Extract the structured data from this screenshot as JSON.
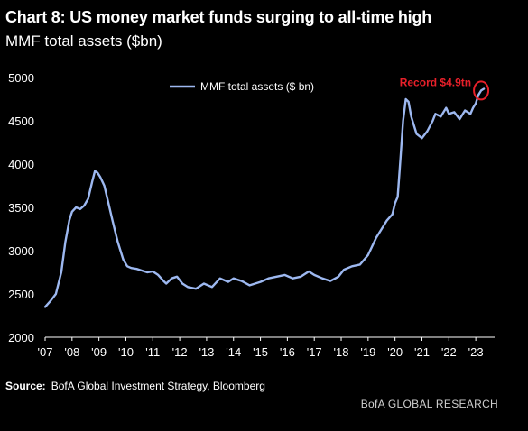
{
  "title": "Chart 8: US money market funds surging to all-time high",
  "subtitle": "MMF total assets ($bn)",
  "source_label": "Source:",
  "source_text": "BofA Global Investment Strategy, Bloomberg",
  "brand": "BofA GLOBAL RESEARCH",
  "colors": {
    "background": "#000000",
    "line": "#9db8f0",
    "annotation": "#e8202a",
    "axis": "#ffffff"
  },
  "chart_data": {
    "type": "line",
    "title": "Chart 8: US money market funds surging to all-time high",
    "ylabel": "MMF total assets ($bn)",
    "xlim": [
      2007,
      2023.7
    ],
    "ylim": [
      2000,
      5000
    ],
    "yticks": [
      2000,
      2500,
      3000,
      3500,
      4000,
      4500,
      5000
    ],
    "xticks": [
      {
        "value": 2007,
        "label": "'07"
      },
      {
        "value": 2008,
        "label": "'08"
      },
      {
        "value": 2009,
        "label": "'09"
      },
      {
        "value": 2010,
        "label": "'10"
      },
      {
        "value": 2011,
        "label": "'11"
      },
      {
        "value": 2012,
        "label": "'12"
      },
      {
        "value": 2013,
        "label": "'13"
      },
      {
        "value": 2014,
        "label": "'14"
      },
      {
        "value": 2015,
        "label": "'15"
      },
      {
        "value": 2016,
        "label": "'16"
      },
      {
        "value": 2017,
        "label": "'17"
      },
      {
        "value": 2018,
        "label": "'18"
      },
      {
        "value": 2019,
        "label": "'19"
      },
      {
        "value": 2020,
        "label": "'20"
      },
      {
        "value": 2021,
        "label": "'21"
      },
      {
        "value": 2022,
        "label": "'22"
      },
      {
        "value": 2023,
        "label": "'23"
      }
    ],
    "grid": false,
    "legend": "top-center",
    "series": [
      {
        "name": "MMF total assets ($ bn)",
        "x": [
          2007.0,
          2007.2,
          2007.4,
          2007.6,
          2007.75,
          2007.9,
          2008.0,
          2008.15,
          2008.3,
          2008.45,
          2008.6,
          2008.75,
          2008.85,
          2008.95,
          2009.05,
          2009.2,
          2009.35,
          2009.5,
          2009.7,
          2009.9,
          2010.05,
          2010.2,
          2010.4,
          2010.6,
          2010.8,
          2011.0,
          2011.2,
          2011.4,
          2011.5,
          2011.7,
          2011.9,
          2012.1,
          2012.3,
          2012.6,
          2012.9,
          2013.2,
          2013.5,
          2013.8,
          2014.0,
          2014.3,
          2014.6,
          2014.8,
          2015.0,
          2015.3,
          2015.6,
          2015.9,
          2016.2,
          2016.5,
          2016.8,
          2017.0,
          2017.3,
          2017.6,
          2017.9,
          2018.1,
          2018.4,
          2018.7,
          2019.0,
          2019.3,
          2019.5,
          2019.7,
          2019.9,
          2020.0,
          2020.1,
          2020.2,
          2020.3,
          2020.4,
          2020.5,
          2020.6,
          2020.8,
          2021.0,
          2021.2,
          2021.4,
          2021.5,
          2021.7,
          2021.9,
          2022.0,
          2022.2,
          2022.4,
          2022.6,
          2022.8,
          2022.9,
          2023.0,
          2023.1,
          2023.2,
          2023.3
        ],
        "values": [
          2350,
          2420,
          2500,
          2750,
          3100,
          3350,
          3450,
          3500,
          3480,
          3520,
          3600,
          3800,
          3920,
          3900,
          3850,
          3750,
          3550,
          3350,
          3100,
          2900,
          2820,
          2800,
          2790,
          2770,
          2750,
          2760,
          2720,
          2650,
          2620,
          2680,
          2700,
          2620,
          2580,
          2560,
          2620,
          2580,
          2680,
          2640,
          2680,
          2650,
          2600,
          2620,
          2640,
          2680,
          2700,
          2720,
          2680,
          2700,
          2760,
          2720,
          2680,
          2650,
          2700,
          2780,
          2820,
          2840,
          2950,
          3150,
          3250,
          3350,
          3420,
          3550,
          3620,
          4050,
          4500,
          4750,
          4720,
          4550,
          4350,
          4300,
          4380,
          4500,
          4580,
          4550,
          4650,
          4580,
          4600,
          4520,
          4620,
          4580,
          4650,
          4700,
          4800,
          4850,
          4870
        ]
      }
    ],
    "annotations": [
      {
        "text": "Record $4.9tn",
        "x": 2023.2,
        "y": 4850
      }
    ]
  }
}
